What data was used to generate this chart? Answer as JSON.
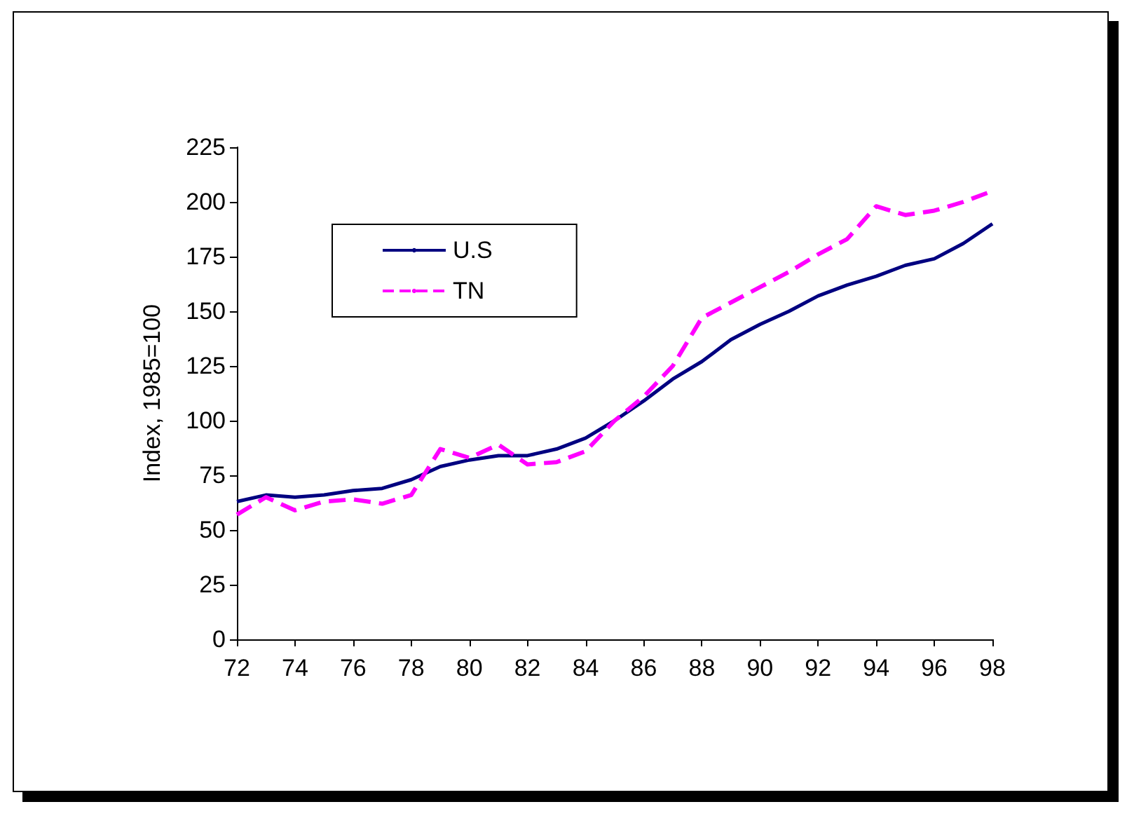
{
  "chart_data": {
    "type": "line",
    "ylabel": "Index, 1985=100",
    "x": [
      72,
      73,
      74,
      75,
      76,
      77,
      78,
      79,
      80,
      81,
      82,
      83,
      84,
      85,
      86,
      87,
      88,
      89,
      90,
      91,
      92,
      93,
      94,
      95,
      96,
      97,
      98
    ],
    "series": [
      {
        "name": "U.S",
        "color": "#000080",
        "line_style": "solid",
        "values": [
          63,
          66,
          65,
          66,
          68,
          69,
          73,
          79,
          82,
          84,
          84,
          87,
          92,
          100,
          109,
          119,
          127,
          137,
          144,
          150,
          157,
          162,
          166,
          171,
          174,
          181,
          190
        ]
      },
      {
        "name": "TN",
        "color": "#ff00ff",
        "line_style": "dashed",
        "values": [
          57,
          65,
          59,
          63,
          64,
          62,
          66,
          87,
          83,
          89,
          80,
          81,
          86,
          100,
          111,
          125,
          147,
          154,
          161,
          168,
          176,
          183,
          198,
          194,
          196,
          200,
          205
        ]
      }
    ],
    "xlim": [
      72,
      98
    ],
    "xticks": [
      72,
      74,
      76,
      78,
      80,
      82,
      84,
      86,
      88,
      90,
      92,
      94,
      96,
      98
    ],
    "ylim": [
      0,
      225
    ],
    "yticks": [
      0,
      25,
      50,
      75,
      100,
      125,
      150,
      175,
      200,
      225
    ],
    "legend": "top left"
  }
}
